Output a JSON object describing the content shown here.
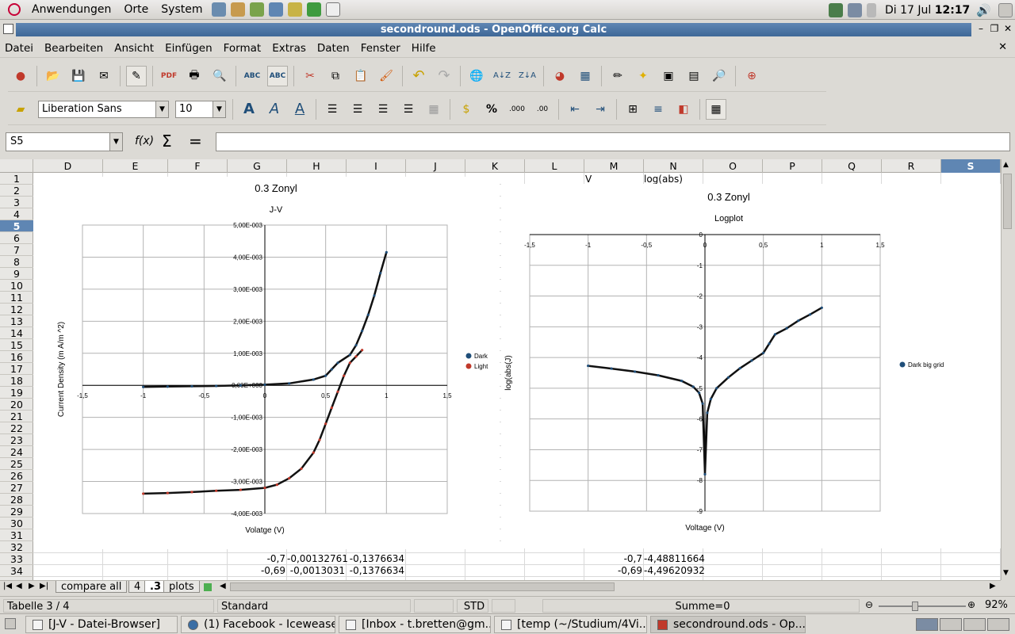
{
  "panel": {
    "menus": [
      "Anwendungen",
      "Orte",
      "System"
    ],
    "date": "Di 17 Jul",
    "time": "12:17"
  },
  "window": {
    "title": "secondround.ods - OpenOffice.org Calc"
  },
  "menubar": [
    "Datei",
    "Bearbeiten",
    "Ansicht",
    "Einfügen",
    "Format",
    "Extras",
    "Daten",
    "Fenster",
    "Hilfe"
  ],
  "format": {
    "font_name": "Liberation Sans",
    "font_size": "10"
  },
  "formula_bar": {
    "cell_ref": "S5",
    "content": ""
  },
  "columns": [
    "D",
    "E",
    "F",
    "G",
    "H",
    "I",
    "J",
    "K",
    "L",
    "M",
    "N",
    "O",
    "P",
    "Q",
    "R",
    "S"
  ],
  "rows": [
    "1",
    "2",
    "3",
    "4",
    "5",
    "6",
    "7",
    "8",
    "9",
    "10",
    "11",
    "12",
    "13",
    "14",
    "15",
    "16",
    "17",
    "18",
    "19",
    "20",
    "21",
    "22",
    "23",
    "24",
    "25",
    "26",
    "27",
    "28",
    "29",
    "30",
    "31",
    "32",
    "33",
    "34"
  ],
  "header_cells": {
    "m1": "V",
    "n1": "log(abs)"
  },
  "visible_rows": [
    {
      "row": "33",
      "g": "-0,7",
      "h": "-0,00132761",
      "i": "-0,1376634",
      "m": "-0,7",
      "n": "-4,48811664"
    },
    {
      "row": "34",
      "g": "-0,69",
      "h": "-0,0013031",
      "i": "-0,1376634",
      "m": "-0,69",
      "n": "-4,49620932"
    }
  ],
  "sheet_tabs": [
    "compare all",
    "4",
    ".3",
    "plots"
  ],
  "status": {
    "sheet": "Tabelle 3 / 4",
    "style": "Standard",
    "mode": "STD",
    "sum": "Summe=0",
    "zoom": "92%"
  },
  "taskbar": [
    "[J-V - Datei-Browser]",
    "(1) Facebook - Iceweasel",
    "[Inbox - t.bretten@gm...",
    "[temp (~/Studium/4Vi...",
    "secondround.ods - Op..."
  ],
  "colors": {
    "dark": "#1f4e79",
    "light": "#c0392b",
    "title_bar": "#4a72a1"
  },
  "chart_data": [
    {
      "type": "scatter",
      "title": "0.3 Zonyl",
      "subtitle": "J-V",
      "xlabel": "Volatge (V)",
      "ylabel": "Current Density (m A/m ^2)",
      "xlim": [
        -1.5,
        1.5
      ],
      "ylim": [
        -0.004,
        0.005
      ],
      "x_ticks": [
        "-1,5",
        "-1",
        "-0,5",
        "0",
        "0,5",
        "1",
        "1,5"
      ],
      "y_ticks": [
        "5,00E-003",
        "4,00E-003",
        "3,00E-003",
        "2,00E-003",
        "1,00E-003",
        "0,00E+000",
        "-1,00E-003",
        "-2,00E-003",
        "-3,00E-003",
        "-4,00E-003"
      ],
      "legend_position": "right",
      "series": [
        {
          "name": "Dark",
          "x": [
            -1,
            -0.8,
            -0.6,
            -0.4,
            -0.2,
            0,
            0.2,
            0.4,
            0.5,
            0.55,
            0.6,
            0.7,
            0.75,
            0.8,
            0.85,
            0.9,
            0.95,
            1.0
          ],
          "y": [
            -5e-05,
            -4e-05,
            -3e-05,
            -2e-05,
            0.0,
            2e-05,
            6e-05,
            0.00018,
            0.0003,
            0.0005,
            0.0007,
            0.00095,
            0.00125,
            0.0017,
            0.0022,
            0.0028,
            0.0035,
            0.00415
          ]
        },
        {
          "name": "Light",
          "x": [
            -1,
            -0.8,
            -0.6,
            -0.4,
            -0.2,
            0,
            0.1,
            0.2,
            0.3,
            0.4,
            0.45,
            0.5,
            0.55,
            0.6,
            0.65,
            0.7,
            0.75,
            0.8
          ],
          "y": [
            -0.00338,
            -0.00336,
            -0.00333,
            -0.00329,
            -0.00326,
            -0.0032,
            -0.0031,
            -0.0029,
            -0.0026,
            -0.0021,
            -0.0017,
            -0.0012,
            -0.0007,
            -0.0002,
            0.0003,
            0.0007,
            0.0009,
            0.0011
          ]
        }
      ]
    },
    {
      "type": "scatter",
      "title": "0.3 Zonyl",
      "subtitle": "Logplot",
      "xlabel": "Voltage (V)",
      "ylabel": "log(abs(J)",
      "xlim": [
        -1.5,
        1.5
      ],
      "ylim": [
        -9,
        0
      ],
      "x_ticks": [
        "-1,5",
        "-1",
        "-0,5",
        "0",
        "0,5",
        "1",
        "1,5"
      ],
      "y_ticks": [
        "0",
        "-1",
        "-2",
        "-3",
        "-4",
        "-5",
        "-6",
        "-7",
        "-8",
        "-9"
      ],
      "legend_position": "right",
      "series": [
        {
          "name": "Dark big grid",
          "x": [
            -1,
            -0.8,
            -0.6,
            -0.4,
            -0.2,
            -0.1,
            -0.05,
            -0.02,
            0,
            0.02,
            0.05,
            0.1,
            0.2,
            0.3,
            0.4,
            0.5,
            0.55,
            0.6,
            0.7,
            0.8,
            0.9,
            1.0
          ],
          "y": [
            -4.27,
            -4.36,
            -4.46,
            -4.58,
            -4.76,
            -4.95,
            -5.15,
            -5.5,
            -7.8,
            -5.8,
            -5.35,
            -5.0,
            -4.65,
            -4.35,
            -4.1,
            -3.85,
            -3.55,
            -3.25,
            -3.05,
            -2.8,
            -2.6,
            -2.38
          ]
        }
      ]
    }
  ]
}
